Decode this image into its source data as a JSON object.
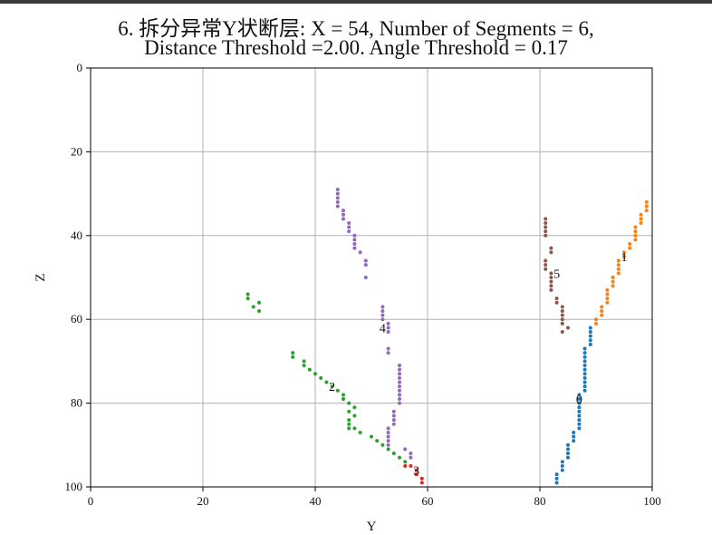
{
  "title": {
    "line1": "6. 拆分异常Y状断层: X = 54, Number of Segments = 6,",
    "line2": "Distance Threshold =2.00. Angle Threshold = 0.17"
  },
  "chart_data": {
    "type": "scatter",
    "xlabel": "Y",
    "ylabel": "Z",
    "xlim": [
      0,
      100
    ],
    "ylim": [
      100,
      0
    ],
    "y_inverted": true,
    "grid": true,
    "x_ticks": [
      "0",
      "20",
      "40",
      "60",
      "80",
      "100"
    ],
    "y_ticks": [
      "0",
      "20",
      "40",
      "60",
      "80",
      "100"
    ],
    "series": [
      {
        "label": "0",
        "color": "#1f77b4",
        "points": [
          [
            83,
            97
          ],
          [
            83,
            98
          ],
          [
            83,
            99
          ],
          [
            84,
            94
          ],
          [
            84,
            95
          ],
          [
            84,
            96
          ],
          [
            85,
            90
          ],
          [
            85,
            91
          ],
          [
            85,
            92
          ],
          [
            85,
            93
          ],
          [
            86,
            87
          ],
          [
            86,
            88
          ],
          [
            86,
            89
          ],
          [
            87,
            82
          ],
          [
            87,
            83
          ],
          [
            87,
            84
          ],
          [
            87,
            85
          ],
          [
            87,
            86
          ],
          [
            87,
            78
          ],
          [
            87,
            79
          ],
          [
            87,
            80
          ],
          [
            87,
            81
          ],
          [
            88,
            67
          ],
          [
            88,
            68
          ],
          [
            88,
            69
          ],
          [
            88,
            70
          ],
          [
            88,
            71
          ],
          [
            88,
            72
          ],
          [
            88,
            73
          ],
          [
            88,
            74
          ],
          [
            88,
            75
          ],
          [
            88,
            76
          ],
          [
            88,
            77
          ],
          [
            89,
            62
          ],
          [
            89,
            63
          ],
          [
            89,
            64
          ],
          [
            89,
            65
          ],
          [
            89,
            66
          ]
        ]
      },
      {
        "label": "1",
        "color": "#ff7f0e",
        "points": [
          [
            90,
            61
          ],
          [
            90,
            60
          ],
          [
            91,
            59
          ],
          [
            91,
            58
          ],
          [
            91,
            57
          ],
          [
            92,
            56
          ],
          [
            92,
            55
          ],
          [
            92,
            54
          ],
          [
            92,
            53
          ],
          [
            93,
            52
          ],
          [
            93,
            51
          ],
          [
            93,
            50
          ],
          [
            94,
            49
          ],
          [
            94,
            48
          ],
          [
            94,
            47
          ],
          [
            94,
            46
          ],
          [
            95,
            45
          ],
          [
            95,
            44
          ],
          [
            96,
            43
          ],
          [
            96,
            42
          ],
          [
            97,
            41
          ],
          [
            97,
            40
          ],
          [
            97,
            39
          ],
          [
            97,
            38
          ],
          [
            98,
            37
          ],
          [
            98,
            36
          ],
          [
            98,
            35
          ],
          [
            99,
            34
          ],
          [
            99,
            33
          ],
          [
            99,
            32
          ]
        ]
      },
      {
        "label": "2",
        "color": "#2ca02c",
        "points": [
          [
            28,
            54
          ],
          [
            28,
            55
          ],
          [
            29,
            57
          ],
          [
            30,
            56
          ],
          [
            30,
            58
          ],
          [
            36,
            68
          ],
          [
            36,
            69
          ],
          [
            38,
            70
          ],
          [
            38,
            71
          ],
          [
            39,
            72
          ],
          [
            40,
            73
          ],
          [
            41,
            74
          ],
          [
            42,
            75
          ],
          [
            43,
            76
          ],
          [
            44,
            77
          ],
          [
            45,
            78
          ],
          [
            45,
            79
          ],
          [
            46,
            80
          ],
          [
            46,
            82
          ],
          [
            46,
            84
          ],
          [
            46,
            85
          ],
          [
            46,
            86
          ],
          [
            47,
            81
          ],
          [
            47,
            83
          ],
          [
            47,
            86
          ],
          [
            48,
            87
          ],
          [
            50,
            88
          ],
          [
            51,
            89
          ],
          [
            52,
            90
          ],
          [
            53,
            91
          ],
          [
            54,
            92
          ],
          [
            55,
            93
          ],
          [
            56,
            94
          ]
        ]
      },
      {
        "label": "3",
        "color": "#d62728",
        "points": [
          [
            56,
            95
          ],
          [
            57,
            95
          ],
          [
            58,
            96
          ],
          [
            58,
            97
          ],
          [
            59,
            98
          ],
          [
            59,
            99
          ]
        ]
      },
      {
        "label": "4",
        "color": "#9467bd",
        "points": [
          [
            44,
            29
          ],
          [
            44,
            30
          ],
          [
            44,
            31
          ],
          [
            44,
            32
          ],
          [
            44,
            33
          ],
          [
            45,
            34
          ],
          [
            45,
            35
          ],
          [
            45,
            36
          ],
          [
            46,
            37
          ],
          [
            46,
            38
          ],
          [
            46,
            39
          ],
          [
            47,
            40
          ],
          [
            47,
            41
          ],
          [
            47,
            42
          ],
          [
            47,
            43
          ],
          [
            48,
            44
          ],
          [
            49,
            46
          ],
          [
            49,
            47
          ],
          [
            49,
            50
          ],
          [
            52,
            57
          ],
          [
            52,
            58
          ],
          [
            52,
            59
          ],
          [
            52,
            60
          ],
          [
            53,
            61
          ],
          [
            53,
            62
          ],
          [
            53,
            63
          ],
          [
            53,
            67
          ],
          [
            53,
            68
          ],
          [
            55,
            71
          ],
          [
            55,
            72
          ],
          [
            55,
            73
          ],
          [
            55,
            74
          ],
          [
            55,
            75
          ],
          [
            55,
            76
          ],
          [
            55,
            77
          ],
          [
            55,
            78
          ],
          [
            55,
            79
          ],
          [
            55,
            80
          ],
          [
            54,
            82
          ],
          [
            54,
            83
          ],
          [
            54,
            84
          ],
          [
            54,
            85
          ],
          [
            53,
            86
          ],
          [
            53,
            87
          ],
          [
            53,
            88
          ],
          [
            53,
            89
          ],
          [
            53,
            90
          ],
          [
            56,
            91
          ],
          [
            57,
            92
          ],
          [
            57,
            93
          ]
        ]
      },
      {
        "label": "5",
        "color": "#8c564b",
        "points": [
          [
            81,
            36
          ],
          [
            81,
            37
          ],
          [
            81,
            38
          ],
          [
            81,
            39
          ],
          [
            81,
            40
          ],
          [
            82,
            43
          ],
          [
            82,
            44
          ],
          [
            81,
            46
          ],
          [
            81,
            47
          ],
          [
            81,
            48
          ],
          [
            82,
            49
          ],
          [
            82,
            50
          ],
          [
            82,
            51
          ],
          [
            82,
            52
          ],
          [
            82,
            53
          ],
          [
            83,
            55
          ],
          [
            83,
            56
          ],
          [
            84,
            57
          ],
          [
            84,
            58
          ],
          [
            84,
            59
          ],
          [
            84,
            60
          ],
          [
            84,
            61
          ],
          [
            85,
            62
          ],
          [
            84,
            63
          ]
        ]
      }
    ],
    "segment_labels": [
      {
        "text": "0",
        "x": 87,
        "y": 79
      },
      {
        "text": "1",
        "x": 95,
        "y": 45
      },
      {
        "text": "2",
        "x": 43,
        "y": 76
      },
      {
        "text": "3",
        "x": 58,
        "y": 96
      },
      {
        "text": "4",
        "x": 52,
        "y": 62
      },
      {
        "text": "5",
        "x": 83,
        "y": 49
      }
    ]
  }
}
